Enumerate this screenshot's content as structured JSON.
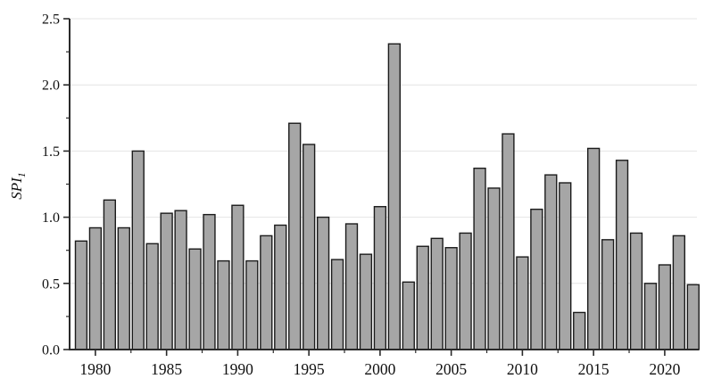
{
  "chart_data": {
    "type": "bar",
    "title": "",
    "xlabel": "",
    "ylabel": "SPI",
    "ylabel_subscript": "1",
    "years": [
      1979,
      1980,
      1981,
      1982,
      1983,
      1984,
      1985,
      1986,
      1987,
      1988,
      1989,
      1990,
      1991,
      1992,
      1993,
      1994,
      1995,
      1996,
      1997,
      1998,
      1999,
      2000,
      2001,
      2002,
      2003,
      2004,
      2005,
      2006,
      2007,
      2008,
      2009,
      2010,
      2011,
      2012,
      2013,
      2014,
      2015,
      2016,
      2017,
      2018,
      2019,
      2020,
      2021,
      2022
    ],
    "values": [
      0.82,
      0.92,
      1.13,
      0.92,
      1.5,
      0.8,
      1.03,
      1.05,
      0.76,
      1.02,
      0.67,
      1.09,
      0.67,
      0.86,
      0.94,
      1.71,
      1.55,
      1.0,
      0.68,
      0.95,
      0.72,
      1.08,
      2.31,
      0.51,
      0.78,
      0.84,
      0.77,
      0.88,
      1.37,
      1.22,
      1.63,
      0.7,
      1.06,
      1.32,
      1.26,
      0.28,
      1.52,
      0.83,
      1.43,
      0.88,
      0.5,
      0.64,
      0.86,
      0.49
    ],
    "ylim": [
      0,
      2.5
    ],
    "yticks": [
      0,
      0.5,
      1,
      1.5,
      2,
      2.5
    ],
    "ytick_labels": [
      "0.0",
      "0.5",
      "1.0",
      "1.5",
      "2.0",
      "2.5"
    ],
    "xticks": [
      1980,
      1985,
      1990,
      1995,
      2000,
      2005,
      2010,
      2015,
      2020
    ],
    "grid": "horizontal",
    "legend_position": "none",
    "colors": {
      "bar_fill": "#a6a6a6",
      "bar_stroke": "#1b1b1b",
      "grid": "#e4e4e4",
      "axis": "#2a2a2a",
      "text": "#111111",
      "background": "#ffffff"
    }
  }
}
